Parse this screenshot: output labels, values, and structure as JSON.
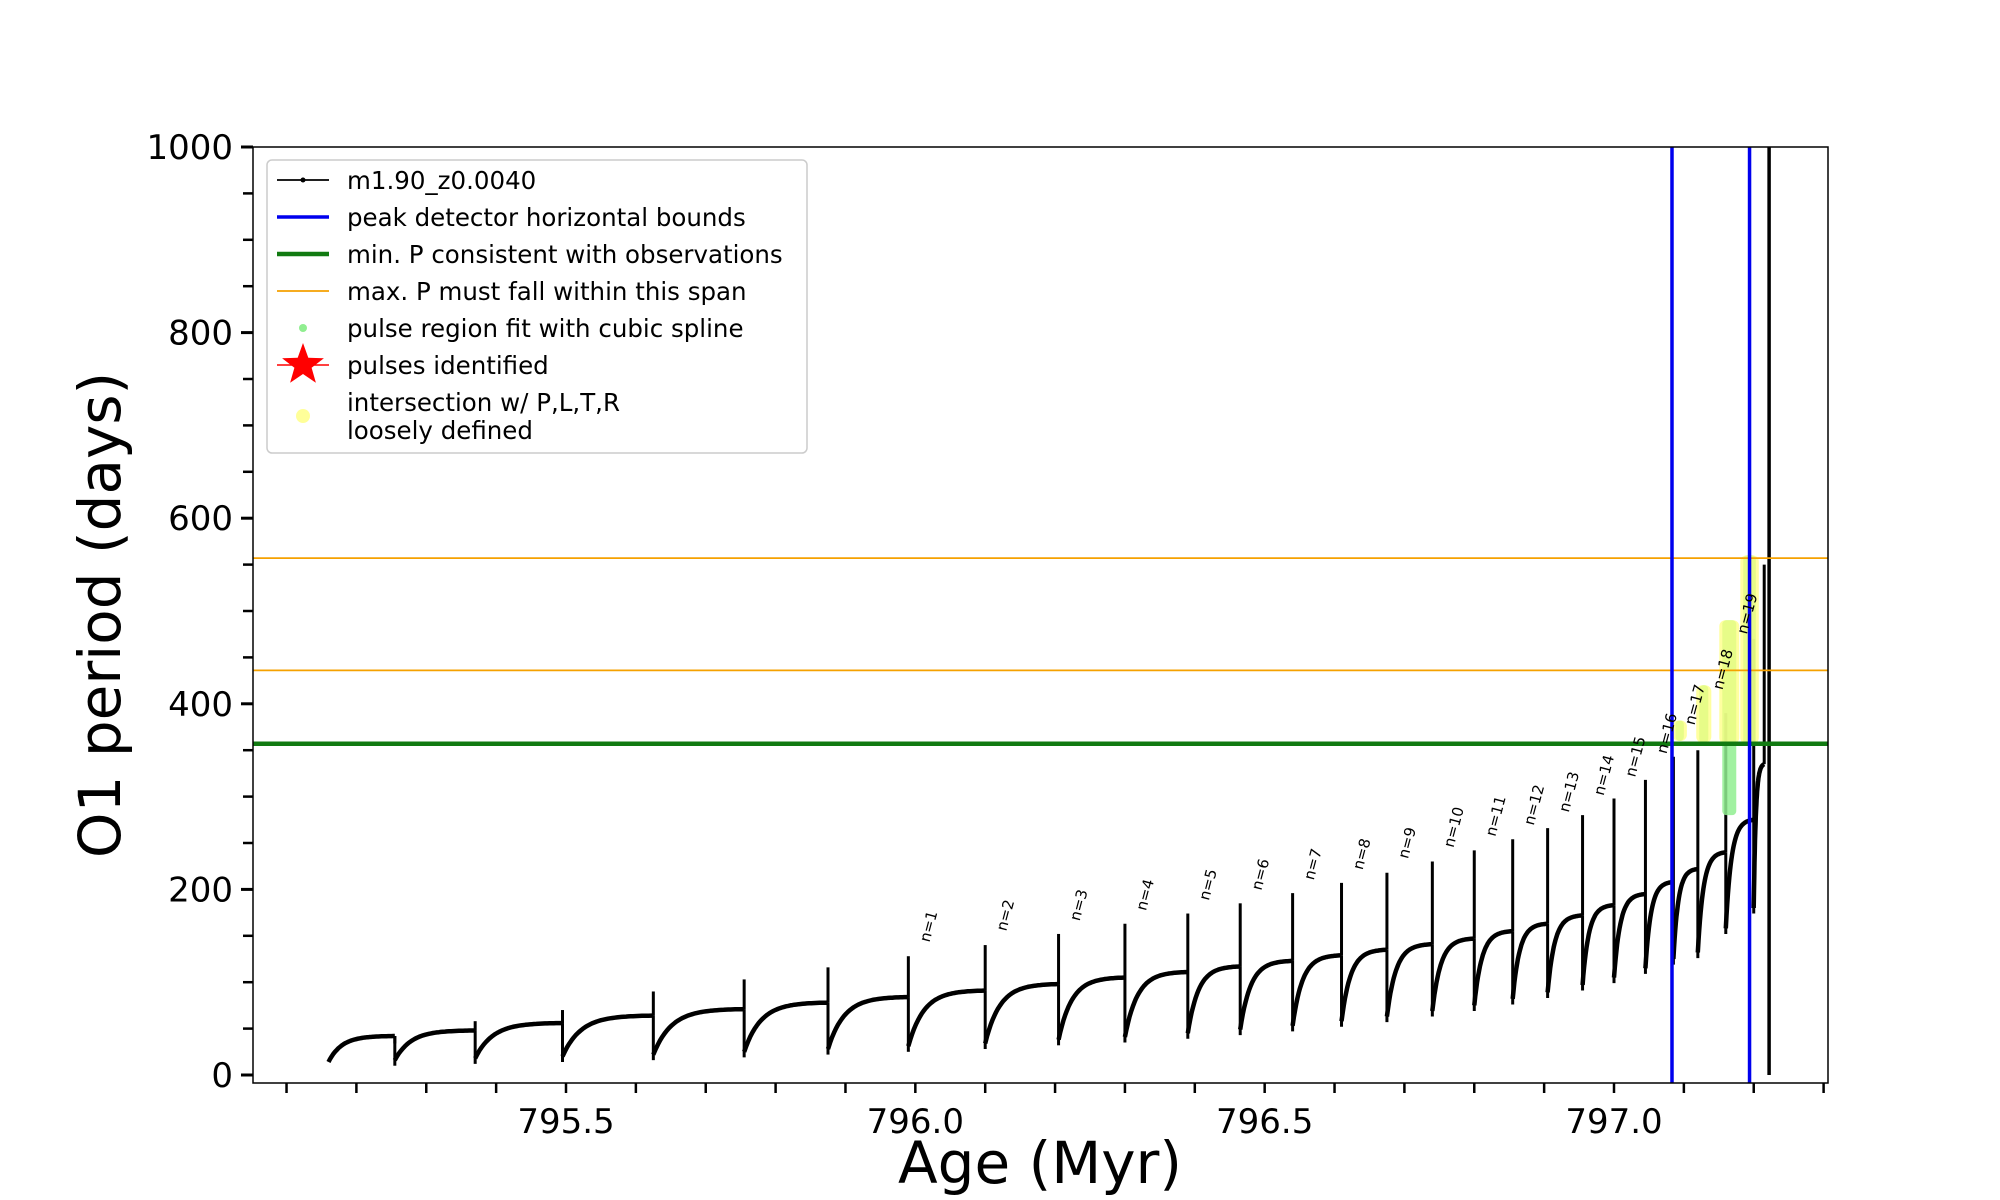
{
  "chart_data": {
    "type": "line",
    "xlabel": "Age (Myr)",
    "ylabel": "O1 period (days)",
    "xlim": [
      795.05,
      797.32
    ],
    "ylim": [
      -10,
      1000
    ],
    "x_ticks": [
      795.5,
      796.0,
      796.5,
      797.0
    ],
    "x_tick_labels": [
      "795.5",
      "796.0",
      "796.5",
      "797.0"
    ],
    "y_ticks": [
      0,
      200,
      400,
      600,
      800,
      1000
    ],
    "y_tick_labels": [
      "0",
      "200",
      "400",
      "600",
      "800",
      "1000"
    ],
    "grid": false,
    "legend_placement": "top-left",
    "legend": [
      {
        "label": "m1.90_z0.0040",
        "kind": "line-marker",
        "color": "#000000"
      },
      {
        "label": "peak detector horizontal bounds",
        "kind": "line",
        "color": "#0000ee"
      },
      {
        "label": "min. P consistent with observations",
        "kind": "thick-line",
        "color": "#117a11"
      },
      {
        "label": "max. P must fall within this span",
        "kind": "thin-line",
        "color": "#f5a100"
      },
      {
        "label": "pulse region fit with cubic spline",
        "kind": "dot",
        "color": "#90ee90"
      },
      {
        "label": "pulses identified",
        "kind": "star",
        "color": "#ff0000"
      },
      {
        "label": "intersection w/ P,L,T,R",
        "label2": "loosely defined",
        "kind": "dot",
        "color": "#ffff99"
      }
    ],
    "series": [
      {
        "name": "m1.90_z0.0040",
        "color": "#000000",
        "pulses": [
          {
            "start": 795.16,
            "end": 795.255,
            "base": 14,
            "peak": 42,
            "spike": 34
          },
          {
            "start": 795.255,
            "end": 795.37,
            "base": 16,
            "peak": 48,
            "spike": 58
          },
          {
            "start": 795.37,
            "end": 795.495,
            "base": 18,
            "peak": 56,
            "spike": 70
          },
          {
            "start": 795.495,
            "end": 795.625,
            "base": 20,
            "peak": 64,
            "spike": 90
          },
          {
            "start": 795.625,
            "end": 795.755,
            "base": 22,
            "peak": 71,
            "spike": 103
          },
          {
            "start": 795.755,
            "end": 795.875,
            "base": 25,
            "peak": 78,
            "spike": 116
          },
          {
            "start": 795.875,
            "end": 795.99,
            "base": 28,
            "peak": 84,
            "spike": 128
          },
          {
            "start": 795.99,
            "end": 796.1,
            "base": 31,
            "peak": 91,
            "spike": 140
          },
          {
            "start": 796.1,
            "end": 796.205,
            "base": 34,
            "peak": 98,
            "spike": 152
          },
          {
            "start": 796.205,
            "end": 796.3,
            "base": 38,
            "peak": 105,
            "spike": 163
          },
          {
            "start": 796.3,
            "end": 796.39,
            "base": 41,
            "peak": 111,
            "spike": 174
          },
          {
            "start": 796.39,
            "end": 796.465,
            "base": 45,
            "peak": 117,
            "spike": 185
          },
          {
            "start": 796.465,
            "end": 796.54,
            "base": 49,
            "peak": 123,
            "spike": 196
          },
          {
            "start": 796.54,
            "end": 796.61,
            "base": 53,
            "peak": 129,
            "spike": 207
          },
          {
            "start": 796.61,
            "end": 796.675,
            "base": 58,
            "peak": 135,
            "spike": 218
          },
          {
            "start": 796.675,
            "end": 796.74,
            "base": 63,
            "peak": 141,
            "spike": 230
          },
          {
            "start": 796.74,
            "end": 796.8,
            "base": 69,
            "peak": 147,
            "spike": 242
          },
          {
            "start": 796.8,
            "end": 796.855,
            "base": 75,
            "peak": 155,
            "spike": 254
          },
          {
            "start": 796.855,
            "end": 796.905,
            "base": 82,
            "peak": 163,
            "spike": 266
          },
          {
            "start": 796.905,
            "end": 796.955,
            "base": 89,
            "peak": 172,
            "spike": 280
          },
          {
            "start": 796.955,
            "end": 797.0,
            "base": 97,
            "peak": 183,
            "spike": 298
          },
          {
            "start": 797.0,
            "end": 797.045,
            "base": 105,
            "peak": 195,
            "spike": 318
          },
          {
            "start": 797.045,
            "end": 797.085,
            "base": 115,
            "peak": 208,
            "spike": 343
          },
          {
            "start": 797.085,
            "end": 797.12,
            "base": 125,
            "peak": 222,
            "spike": 350
          },
          {
            "start": 797.12,
            "end": 797.16,
            "base": 132,
            "peak": 240,
            "spike": 390
          },
          {
            "start": 797.16,
            "end": 797.2,
            "base": 158,
            "peak": 275,
            "spike": 470
          },
          {
            "start": 797.2,
            "end": 797.215,
            "base": 180,
            "peak": 335,
            "spike": 550
          }
        ],
        "final_spike": {
          "x": 797.222,
          "y_min": 0,
          "y_max": 1000
        }
      }
    ],
    "hlines": [
      {
        "name": "min. P consistent with observations",
        "y": 357,
        "color": "#117a11"
      },
      {
        "name": "max. P must fall within this span (lower)",
        "y": 436,
        "color": "#f5a100"
      },
      {
        "name": "max. P must fall within this span (upper)",
        "y": 557,
        "color": "#f5a100"
      }
    ],
    "vlines": [
      {
        "name": "peak detector horizontal bounds (left)",
        "x": 797.083,
        "color": "#0000ee"
      },
      {
        "name": "peak detector horizontal bounds (right)",
        "x": 797.194,
        "color": "#0000ee"
      }
    ],
    "spline_regions": [
      {
        "x_start": 797.088,
        "x_end": 797.1,
        "y_min": 360,
        "y_max": 382
      },
      {
        "x_start": 797.122,
        "x_end": 797.135,
        "y_min": 358,
        "y_max": 420
      },
      {
        "x_start": 797.155,
        "x_end": 797.175,
        "y_min": 280,
        "y_max": 490
      },
      {
        "x_start": 797.185,
        "x_end": 797.203,
        "y_min": 355,
        "y_max": 560
      }
    ],
    "pulse_labels": [
      {
        "text": "n=1",
        "x": 796.0,
        "y": 138
      },
      {
        "text": "n=2",
        "x": 796.11,
        "y": 150
      },
      {
        "text": "n=3",
        "x": 796.215,
        "y": 161
      },
      {
        "text": "n=4",
        "x": 796.31,
        "y": 172
      },
      {
        "text": "n=5",
        "x": 796.4,
        "y": 183
      },
      {
        "text": "n=6",
        "x": 796.475,
        "y": 194
      },
      {
        "text": "n=7",
        "x": 796.55,
        "y": 205
      },
      {
        "text": "n=8",
        "x": 796.62,
        "y": 216
      },
      {
        "text": "n=9",
        "x": 796.685,
        "y": 228
      },
      {
        "text": "n=10",
        "x": 796.75,
        "y": 240
      },
      {
        "text": "n=11",
        "x": 796.81,
        "y": 252
      },
      {
        "text": "n=12",
        "x": 796.865,
        "y": 264
      },
      {
        "text": "n=13",
        "x": 796.915,
        "y": 278
      },
      {
        "text": "n=14",
        "x": 796.965,
        "y": 296
      },
      {
        "text": "n=15",
        "x": 797.01,
        "y": 316
      },
      {
        "text": "n=16",
        "x": 797.055,
        "y": 341
      },
      {
        "text": "n=17",
        "x": 797.095,
        "y": 372
      },
      {
        "text": "n=18",
        "x": 797.135,
        "y": 410
      },
      {
        "text": "n=19",
        "x": 797.17,
        "y": 470
      }
    ]
  }
}
